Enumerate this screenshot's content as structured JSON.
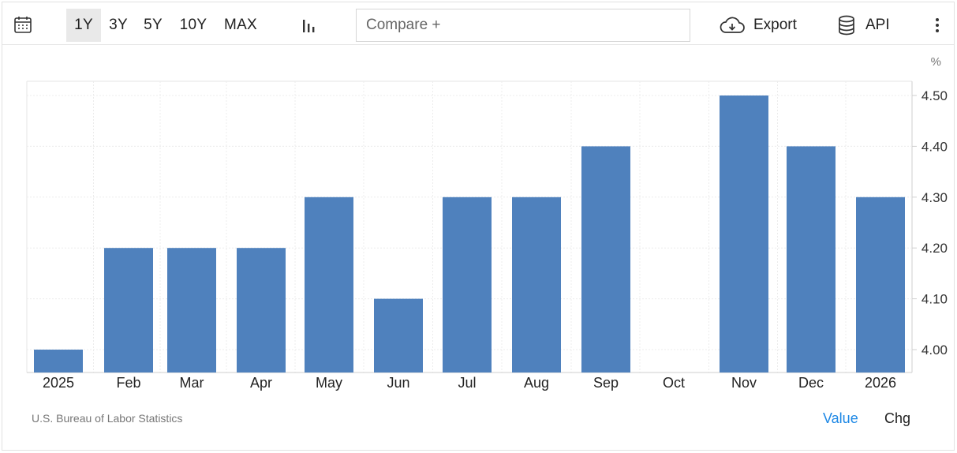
{
  "toolbar": {
    "calendar_icon": "calendar-icon",
    "ranges": [
      {
        "label": "1Y",
        "active": true
      },
      {
        "label": "3Y",
        "active": false
      },
      {
        "label": "5Y",
        "active": false
      },
      {
        "label": "10Y",
        "active": false
      },
      {
        "label": "MAX",
        "active": false
      }
    ],
    "chart_type_icon": "bar-chart-icon",
    "compare_placeholder": "Compare +",
    "export_label": "Export",
    "export_icon": "cloud-download-icon",
    "api_label": "API",
    "api_icon": "database-icon",
    "more_icon": "vertical-dots-icon"
  },
  "chart_data": {
    "type": "bar",
    "categories": [
      "2025",
      "Feb",
      "Mar",
      "Apr",
      "May",
      "Jun",
      "Jul",
      "Aug",
      "Sep",
      "Oct",
      "Nov",
      "Dec",
      "2026"
    ],
    "values": [
      4.0,
      4.2,
      4.2,
      4.2,
      4.3,
      4.1,
      4.3,
      4.3,
      4.4,
      null,
      4.5,
      4.4,
      4.3
    ],
    "unit": "%",
    "yticks": [
      "4.00",
      "4.10",
      "4.20",
      "4.30",
      "4.40",
      "4.50"
    ],
    "ylim": [
      3.96,
      4.52
    ],
    "y_axis_side": "right",
    "grid": true,
    "bar_color": "#4f81bd",
    "legend": "none"
  },
  "footer": {
    "source": "U.S. Bureau of Labor Statistics",
    "value_label": "Value",
    "chg_label": "Chg",
    "value_color": "#1e88e5"
  }
}
